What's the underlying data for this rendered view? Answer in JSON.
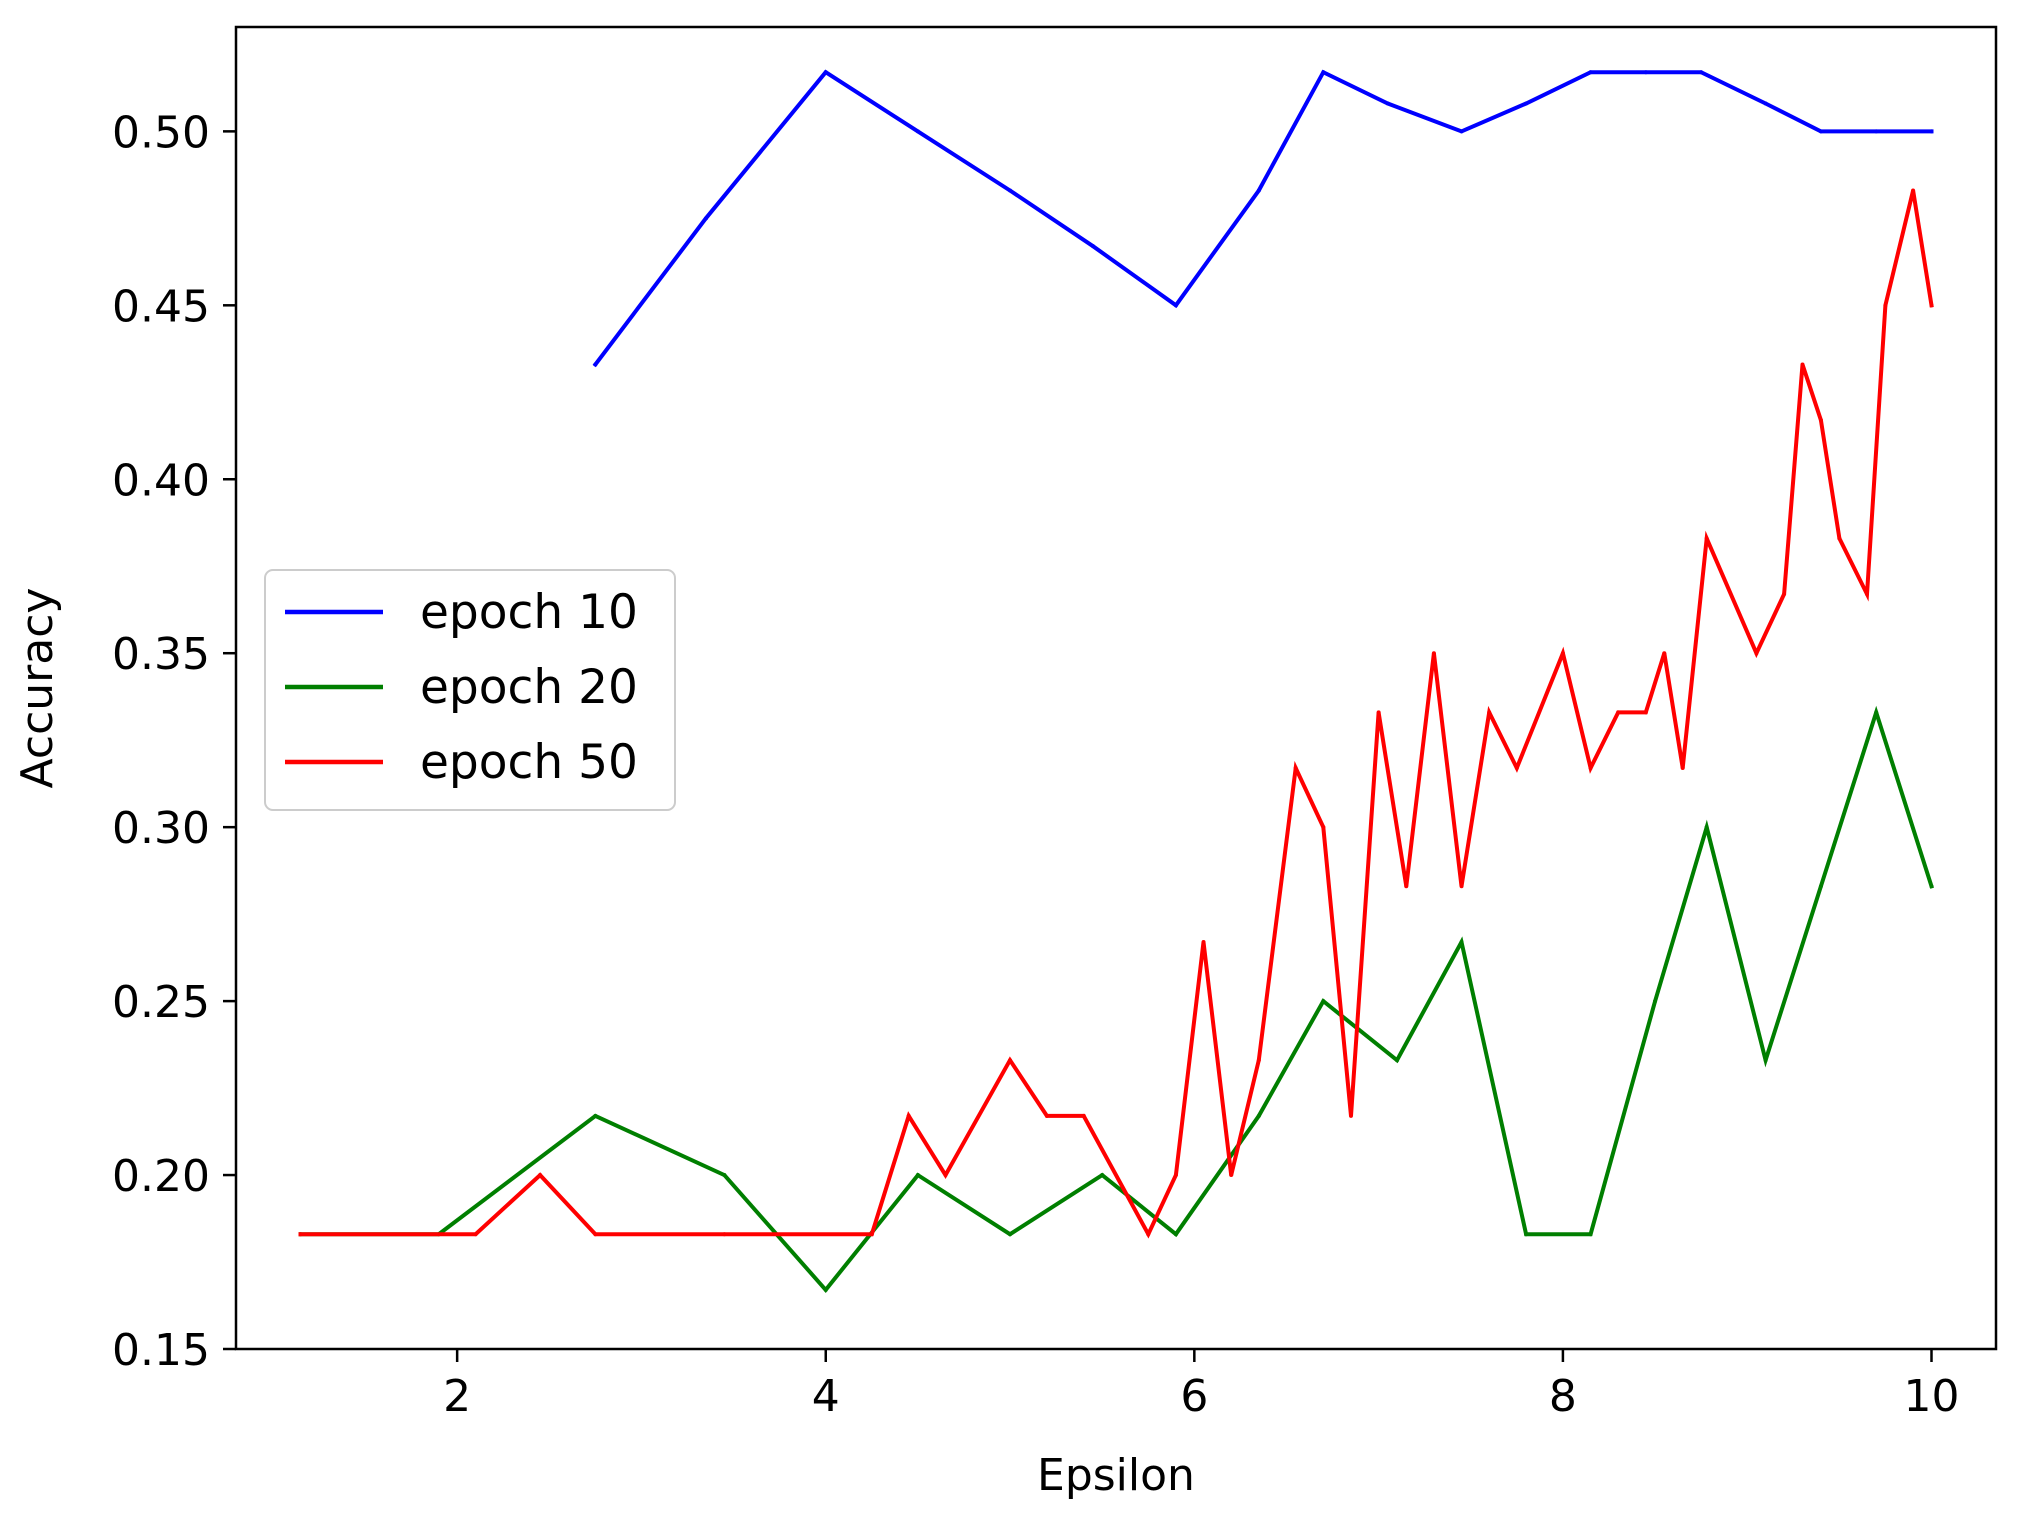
{
  "chart_data": {
    "type": "line",
    "title": "",
    "xlabel": "Epsilon",
    "ylabel": "Accuracy",
    "xlim": [
      0.8,
      10.35
    ],
    "ylim": [
      0.15,
      0.53
    ],
    "xticks": [
      2,
      4,
      6,
      8,
      10
    ],
    "xtick_labels": [
      "2",
      "4",
      "6",
      "8",
      "10"
    ],
    "yticks": [
      0.15,
      0.2,
      0.25,
      0.3,
      0.35,
      0.4,
      0.45,
      0.5
    ],
    "ytick_labels": [
      "0.15",
      "0.20",
      "0.25",
      "0.30",
      "0.35",
      "0.40",
      "0.45",
      "0.50"
    ],
    "grid": false,
    "legend_position": "center-left",
    "series": [
      {
        "name": "epoch 10",
        "color": "#0000ff",
        "x": [
          2.75,
          3.35,
          4.0,
          4.5,
          5.0,
          5.45,
          5.9,
          6.35,
          6.7,
          7.05,
          7.45,
          7.8,
          8.15,
          8.45,
          8.75,
          9.1,
          9.4,
          9.7,
          10.0
        ],
        "y": [
          0.433,
          0.475,
          0.517,
          0.5,
          0.483,
          0.467,
          0.45,
          0.483,
          0.517,
          0.508,
          0.5,
          0.508,
          0.517,
          0.517,
          0.517,
          0.508,
          0.5,
          0.5,
          0.5
        ]
      },
      {
        "name": "epoch 20",
        "color": "#007f00",
        "x": [
          1.15,
          1.9,
          2.75,
          3.45,
          4.0,
          4.5,
          5.0,
          5.5,
          5.9,
          6.35,
          6.7,
          7.1,
          7.45,
          7.8,
          8.15,
          8.5,
          8.78,
          9.1,
          9.4,
          9.7,
          10.0
        ],
        "y": [
          0.183,
          0.183,
          0.217,
          0.2,
          0.167,
          0.2,
          0.183,
          0.2,
          0.183,
          0.217,
          0.25,
          0.233,
          0.267,
          0.183,
          0.183,
          0.25,
          0.3,
          0.233,
          0.283,
          0.333,
          0.283
        ]
      },
      {
        "name": "epoch 50",
        "color": "#ff0000",
        "x": [
          1.15,
          2.1,
          2.45,
          2.75,
          3.45,
          4.25,
          4.45,
          4.65,
          5.0,
          5.2,
          5.4,
          5.75,
          5.9,
          6.05,
          6.2,
          6.35,
          6.55,
          6.7,
          6.85,
          7.0,
          7.15,
          7.3,
          7.45,
          7.6,
          7.75,
          8.0,
          8.15,
          8.3,
          8.45,
          8.55,
          8.65,
          8.78,
          9.05,
          9.2,
          9.3,
          9.4,
          9.5,
          9.65,
          9.75,
          9.9,
          10.0
        ],
        "y": [
          0.183,
          0.183,
          0.2,
          0.183,
          0.183,
          0.183,
          0.217,
          0.2,
          0.233,
          0.217,
          0.217,
          0.183,
          0.2,
          0.267,
          0.2,
          0.233,
          0.317,
          0.3,
          0.217,
          0.333,
          0.283,
          0.35,
          0.283,
          0.333,
          0.317,
          0.35,
          0.317,
          0.333,
          0.333,
          0.35,
          0.317,
          0.383,
          0.35,
          0.367,
          0.433,
          0.417,
          0.383,
          0.367,
          0.45,
          0.483,
          0.45
        ]
      }
    ]
  }
}
